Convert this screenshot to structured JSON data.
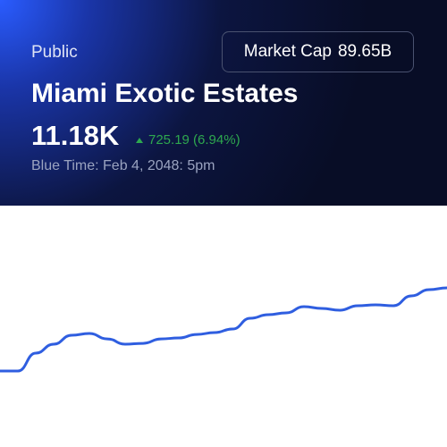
{
  "header": {
    "badge": "Public",
    "market_cap_label": "Market Cap",
    "market_cap_value": "89.65B",
    "title": "Miami Exotic Estates",
    "price": "11.18K",
    "change": "725.19 (6.94%)",
    "time": "Blue Time: Feb 4, 2048: 5pm"
  },
  "chart_data": {
    "type": "line",
    "color": "#2f5ee0",
    "values": [
      10455,
      10455,
      10611,
      10689,
      10767,
      10782,
      10735,
      10689,
      10696,
      10735,
      10743,
      10774,
      10790,
      10821,
      10915,
      10946,
      10962,
      11016,
      11001,
      10985,
      11024,
      11032,
      11024,
      11110,
      11164,
      11180
    ]
  }
}
